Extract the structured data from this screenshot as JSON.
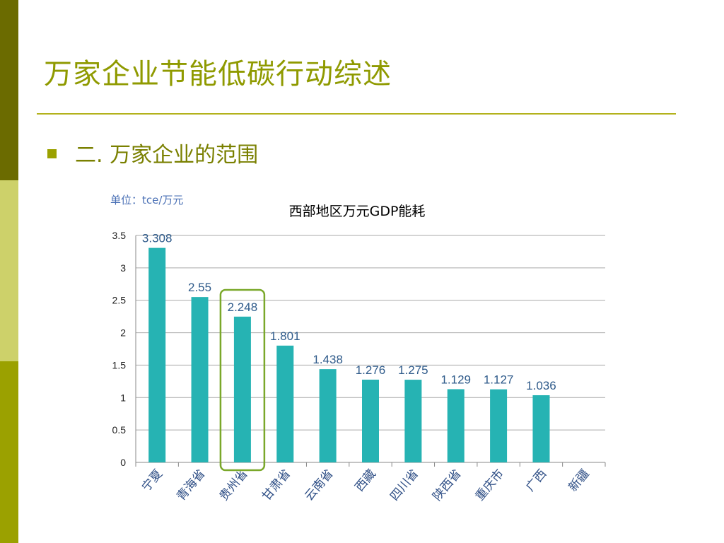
{
  "slide": {
    "title": "万家企业节能低碳行动综述",
    "bullet": "二. 万家企业的范围"
  },
  "chart_data": {
    "type": "bar",
    "title": "西部地区万元GDP能耗",
    "unit_label": "单位：tce/万元",
    "categories": [
      "宁夏",
      "青海省",
      "贵州省",
      "甘肃省",
      "云南省",
      "西藏",
      "四川省",
      "陕西省",
      "重庆市",
      "广西",
      "新疆"
    ],
    "values": [
      3.308,
      2.55,
      2.248,
      1.801,
      1.438,
      1.276,
      1.275,
      1.129,
      1.127,
      1.036,
      null
    ],
    "value_labels": [
      "3.308",
      "2.55",
      "2.248",
      "1.801",
      "1.438",
      "1.276",
      "1.275",
      "1.129",
      "1.127",
      "1.036",
      ""
    ],
    "ylim": [
      0,
      3.5
    ],
    "yticks": [
      "0",
      "0.5",
      "1",
      "1.5",
      "2",
      "2.5",
      "3",
      "3.5"
    ],
    "grid": true,
    "highlighted_category": "贵州省",
    "colors": {
      "bar": "#26b3b3",
      "highlight_box": "#7aa82a",
      "grid": "#aaaaaa"
    }
  }
}
